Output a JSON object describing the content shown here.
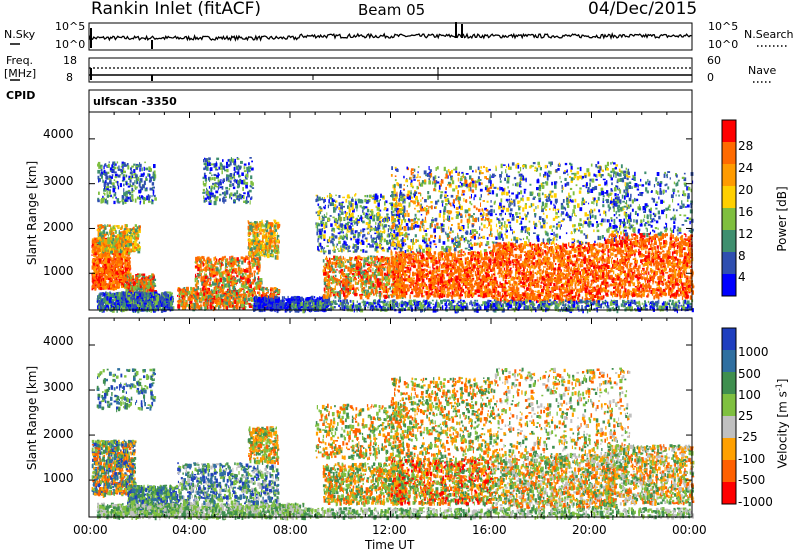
{
  "header": {
    "station": "Rankin Inlet (fitACF)",
    "beam": "Beam 05",
    "date": "04/Dec/2015"
  },
  "meta_panel": {
    "nsky_label": "N.Sky",
    "nsearch_label": "N.Search",
    "exp_top_left": "10^5",
    "exp_bot_left": "10^0",
    "exp_top_right": "10^5",
    "exp_bot_right": "10^0",
    "freq_label_1": "Freq.",
    "freq_label_2": "[MHz]",
    "freq_top": "18",
    "freq_bot": "8",
    "nave_label": "Nave",
    "nave_top": "60",
    "nave_bot": "0",
    "cpid_label": "CPID",
    "cpid_value": "ulfscan  -3350"
  },
  "chart_data": [
    {
      "type": "heatmap",
      "name": "power-panel",
      "ylabel": "Slant Range [km]",
      "yticks": [
        "4000",
        "3000",
        "2000",
        "1000"
      ],
      "ylim": [
        180,
        4600
      ],
      "xlim": [
        "00:00",
        "24:00"
      ],
      "colorbar_label": "Power [dB]",
      "colorbar_ticks": [
        "28",
        "24",
        "20",
        "16",
        "12",
        "8",
        "4"
      ],
      "colorbar_colors": [
        "#ff0000",
        "#ff6a00",
        "#ff9b00",
        "#ffd000",
        "#7fbf3f",
        "#3f8f6f",
        "#2f4fb0",
        "#0000ff"
      ]
    },
    {
      "type": "heatmap",
      "name": "velocity-panel",
      "ylabel": "Slant Range [km]",
      "yticks": [
        "4000",
        "3000",
        "2000",
        "1000"
      ],
      "ylim": [
        180,
        4600
      ],
      "xlim": [
        "00:00",
        "24:00"
      ],
      "xlabel": "Time UT",
      "xticks": [
        "00:00",
        "04:00",
        "08:00",
        "12:00",
        "16:00",
        "20:00",
        "00:00"
      ],
      "colorbar_label": "Velocity [m s",
      "colorbar_label_exp": "-1",
      "colorbar_label_end": "]",
      "colorbar_ticks": [
        "1000",
        "500",
        "100",
        "25",
        "-25",
        "-100",
        "-500",
        "-1000"
      ],
      "colorbar_colors": [
        "#1f3fbf",
        "#2f6fa0",
        "#3f8f4f",
        "#7fc040",
        "#c0c0c0",
        "#ffa000",
        "#ff6000",
        "#ff0000"
      ]
    }
  ]
}
